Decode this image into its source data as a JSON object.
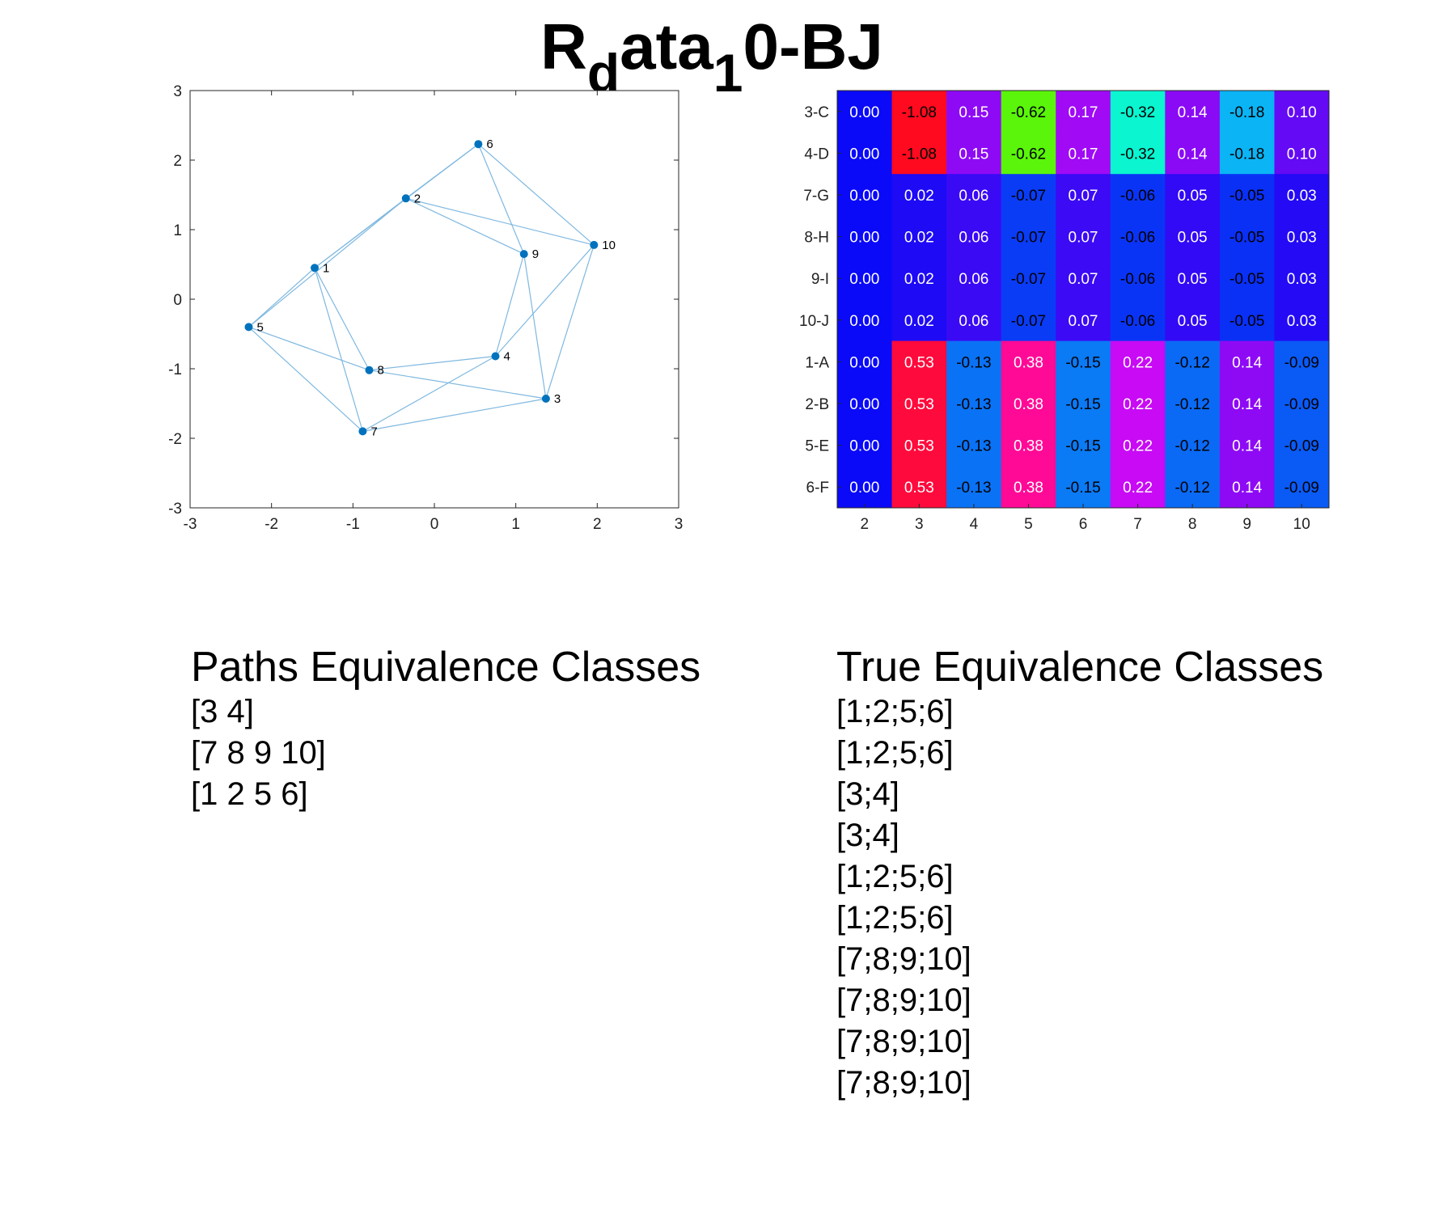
{
  "title": {
    "main": "R",
    "sub1": "d",
    "mid": "ata",
    "sub2": "1",
    "tail": "0-BJ"
  },
  "chart_data": [
    {
      "type": "scatter",
      "xlim": [
        -3,
        3
      ],
      "ylim": [
        -3,
        3
      ],
      "xticks": [
        "-3",
        "-2",
        "-1",
        "0",
        "1",
        "2",
        "3"
      ],
      "yticks": [
        "3",
        "2",
        "1",
        "0",
        "-1",
        "-2",
        "-3"
      ],
      "grid": false,
      "nodes": [
        {
          "id": "1",
          "x": -1.47,
          "y": 0.45
        },
        {
          "id": "2",
          "x": -0.35,
          "y": 1.45
        },
        {
          "id": "3",
          "x": 1.37,
          "y": -1.43
        },
        {
          "id": "4",
          "x": 0.75,
          "y": -0.82
        },
        {
          "id": "5",
          "x": -2.28,
          "y": -0.4
        },
        {
          "id": "6",
          "x": 0.54,
          "y": 2.23
        },
        {
          "id": "7",
          "x": -0.88,
          "y": -1.9
        },
        {
          "id": "8",
          "x": -0.8,
          "y": -1.02
        },
        {
          "id": "9",
          "x": 1.1,
          "y": 0.65
        },
        {
          "id": "10",
          "x": 1.96,
          "y": 0.78
        }
      ],
      "edges": [
        [
          "1",
          "2"
        ],
        [
          "1",
          "6"
        ],
        [
          "1",
          "5"
        ],
        [
          "1",
          "7"
        ],
        [
          "1",
          "8"
        ],
        [
          "2",
          "6"
        ],
        [
          "2",
          "5"
        ],
        [
          "2",
          "9"
        ],
        [
          "2",
          "10"
        ],
        [
          "5",
          "8"
        ],
        [
          "5",
          "7"
        ],
        [
          "6",
          "9"
        ],
        [
          "6",
          "10"
        ],
        [
          "8",
          "3"
        ],
        [
          "8",
          "4"
        ],
        [
          "7",
          "4"
        ],
        [
          "7",
          "3"
        ],
        [
          "9",
          "4"
        ],
        [
          "9",
          "3"
        ],
        [
          "10",
          "4"
        ],
        [
          "10",
          "3"
        ]
      ],
      "colors": {
        "node": "#0072BD",
        "edge": "#7FB8E0"
      }
    },
    {
      "type": "heatmap",
      "columns": [
        "2",
        "3",
        "4",
        "5",
        "6",
        "7",
        "8",
        "9",
        "10"
      ],
      "rows": [
        "3-C",
        "4-D",
        "7-G",
        "8-H",
        "9-I",
        "10-J",
        "1-A",
        "2-B",
        "5-E",
        "6-F"
      ],
      "values": [
        [
          "0.00",
          "-1.08",
          "0.15",
          "-0.62",
          "0.17",
          "-0.32",
          "0.14",
          "-0.18",
          "0.10"
        ],
        [
          "0.00",
          "-1.08",
          "0.15",
          "-0.62",
          "0.17",
          "-0.32",
          "0.14",
          "-0.18",
          "0.10"
        ],
        [
          "0.00",
          "0.02",
          "0.06",
          "-0.07",
          "0.07",
          "-0.06",
          "0.05",
          "-0.05",
          "0.03"
        ],
        [
          "0.00",
          "0.02",
          "0.06",
          "-0.07",
          "0.07",
          "-0.06",
          "0.05",
          "-0.05",
          "0.03"
        ],
        [
          "0.00",
          "0.02",
          "0.06",
          "-0.07",
          "0.07",
          "-0.06",
          "0.05",
          "-0.05",
          "0.03"
        ],
        [
          "0.00",
          "0.02",
          "0.06",
          "-0.07",
          "0.07",
          "-0.06",
          "0.05",
          "-0.05",
          "0.03"
        ],
        [
          "0.00",
          "0.53",
          "-0.13",
          "0.38",
          "-0.15",
          "0.22",
          "-0.12",
          "0.14",
          "-0.09"
        ],
        [
          "0.00",
          "0.53",
          "-0.13",
          "0.38",
          "-0.15",
          "0.22",
          "-0.12",
          "0.14",
          "-0.09"
        ],
        [
          "0.00",
          "0.53",
          "-0.13",
          "0.38",
          "-0.15",
          "0.22",
          "-0.12",
          "0.14",
          "-0.09"
        ],
        [
          "0.00",
          "0.53",
          "-0.13",
          "0.38",
          "-0.15",
          "0.22",
          "-0.12",
          "0.14",
          "-0.09"
        ]
      ],
      "cell_colors": [
        [
          "#0A0AF8",
          "#FF0A1E",
          "#8E0AF5",
          "#5AF50A",
          "#A00AF5",
          "#0AF5D0",
          "#8A0AF5",
          "#0AB4F5",
          "#640AF5"
        ],
        [
          "#0A0AF8",
          "#FF0A1E",
          "#8E0AF5",
          "#5AF50A",
          "#A00AF5",
          "#0AF5D0",
          "#8A0AF5",
          "#0AB4F5",
          "#640AF5"
        ],
        [
          "#0A0AF8",
          "#1E0AF5",
          "#3A0AF5",
          "#0A3CF5",
          "#3C0AF5",
          "#0A34F5",
          "#320AF5",
          "#0A30F5",
          "#240AF5"
        ],
        [
          "#0A0AF8",
          "#1E0AF5",
          "#3A0AF5",
          "#0A3CF5",
          "#3C0AF5",
          "#0A34F5",
          "#320AF5",
          "#0A30F5",
          "#240AF5"
        ],
        [
          "#0A0AF8",
          "#1E0AF5",
          "#3A0AF5",
          "#0A3CF5",
          "#3C0AF5",
          "#0A34F5",
          "#320AF5",
          "#0A30F5",
          "#240AF5"
        ],
        [
          "#0A0AF8",
          "#1E0AF5",
          "#3A0AF5",
          "#0A3CF5",
          "#3C0AF5",
          "#0A34F5",
          "#320AF5",
          "#0A30F5",
          "#240AF5"
        ],
        [
          "#0A0AF8",
          "#FF0A3C",
          "#0A72F5",
          "#FF0A96",
          "#0A7AF5",
          "#C80AF5",
          "#0A6AF5",
          "#8E0AF5",
          "#0A5AF5"
        ],
        [
          "#0A0AF8",
          "#FF0A3C",
          "#0A72F5",
          "#FF0A96",
          "#0A7AF5",
          "#C80AF5",
          "#0A6AF5",
          "#8E0AF5",
          "#0A5AF5"
        ],
        [
          "#0A0AF8",
          "#FF0A3C",
          "#0A72F5",
          "#FF0A96",
          "#0A7AF5",
          "#C80AF5",
          "#0A6AF5",
          "#8E0AF5",
          "#0A5AF5"
        ],
        [
          "#0A0AF8",
          "#FF0A3C",
          "#0A72F5",
          "#FF0A96",
          "#0A7AF5",
          "#C80AF5",
          "#0A6AF5",
          "#8E0AF5",
          "#0A5AF5"
        ]
      ],
      "text_colors": [
        [
          "#ffffff",
          "#000000",
          "#ffffff",
          "#000000",
          "#ffffff",
          "#000000",
          "#ffffff",
          "#000000",
          "#ffffff"
        ],
        [
          "#ffffff",
          "#000000",
          "#ffffff",
          "#000000",
          "#ffffff",
          "#000000",
          "#ffffff",
          "#000000",
          "#ffffff"
        ],
        [
          "#ffffff",
          "#ffffff",
          "#ffffff",
          "#000000",
          "#ffffff",
          "#000000",
          "#ffffff",
          "#000000",
          "#ffffff"
        ],
        [
          "#ffffff",
          "#ffffff",
          "#ffffff",
          "#000000",
          "#ffffff",
          "#000000",
          "#ffffff",
          "#000000",
          "#ffffff"
        ],
        [
          "#ffffff",
          "#ffffff",
          "#ffffff",
          "#000000",
          "#ffffff",
          "#000000",
          "#ffffff",
          "#000000",
          "#ffffff"
        ],
        [
          "#ffffff",
          "#ffffff",
          "#ffffff",
          "#000000",
          "#ffffff",
          "#000000",
          "#ffffff",
          "#000000",
          "#ffffff"
        ],
        [
          "#ffffff",
          "#ffffff",
          "#000000",
          "#ffffff",
          "#000000",
          "#ffffff",
          "#000000",
          "#ffffff",
          "#000000"
        ],
        [
          "#ffffff",
          "#ffffff",
          "#000000",
          "#ffffff",
          "#000000",
          "#ffffff",
          "#000000",
          "#ffffff",
          "#000000"
        ],
        [
          "#ffffff",
          "#ffffff",
          "#000000",
          "#ffffff",
          "#000000",
          "#ffffff",
          "#000000",
          "#ffffff",
          "#000000"
        ],
        [
          "#ffffff",
          "#ffffff",
          "#000000",
          "#ffffff",
          "#000000",
          "#ffffff",
          "#000000",
          "#ffffff",
          "#000000"
        ]
      ]
    }
  ],
  "paths": {
    "heading": "Paths Equivalence Classes",
    "items": [
      "[3 4]",
      "[7 8 9 10]",
      "[1 2 5 6]"
    ]
  },
  "true_classes": {
    "heading": "True Equivalence Classes",
    "items": [
      "[1;2;5;6]",
      "[1;2;5;6]",
      "[3;4]",
      "[3;4]",
      "[1;2;5;6]",
      "[1;2;5;6]",
      "[7;8;9;10]",
      "[7;8;9;10]",
      "[7;8;9;10]",
      "[7;8;9;10]"
    ]
  }
}
